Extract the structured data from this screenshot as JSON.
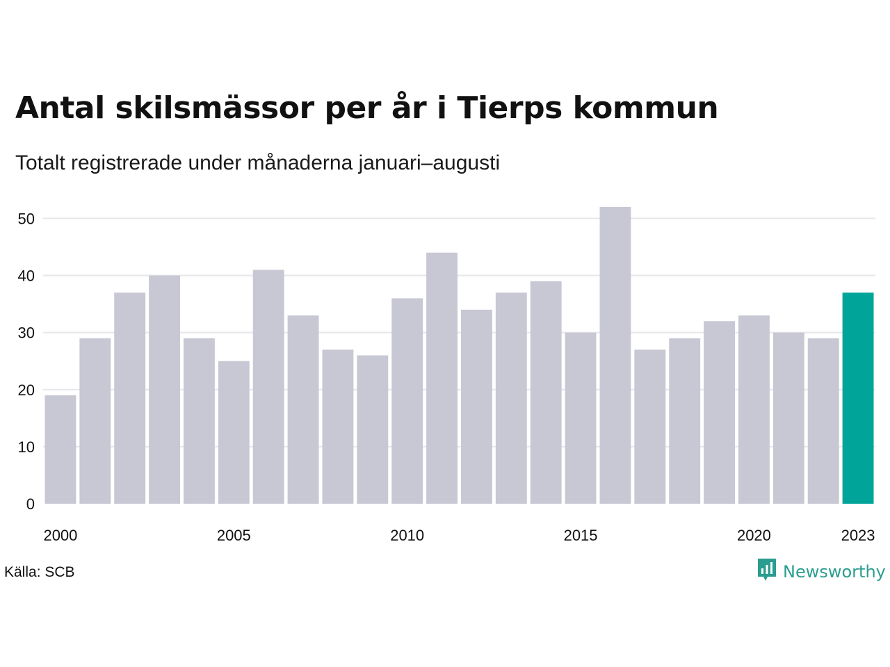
{
  "title": "Antal skilsmässor per år i Tierps kommun",
  "subtitle": "Totalt registrerade under månaderna januari–augusti",
  "source": "Källa: SCB",
  "brand": {
    "name": "Newsworthy",
    "logo_icon": "newsworthy-logo-icon",
    "color": "#2a9d8f"
  },
  "colors": {
    "bar": "#c8c7d4",
    "highlight": "#00a499",
    "grid": "#e6e6eb",
    "text": "#111111"
  },
  "chart_data": {
    "type": "bar",
    "categories": [
      "2000",
      "2001",
      "2002",
      "2003",
      "2004",
      "2005",
      "2006",
      "2007",
      "2008",
      "2009",
      "2010",
      "2011",
      "2012",
      "2013",
      "2014",
      "2015",
      "2016",
      "2017",
      "2018",
      "2019",
      "2020",
      "2021",
      "2022",
      "2023"
    ],
    "values": [
      19,
      29,
      37,
      40,
      29,
      25,
      41,
      33,
      27,
      26,
      36,
      44,
      34,
      37,
      39,
      30,
      52,
      27,
      29,
      32,
      33,
      30,
      29,
      37
    ],
    "x_tick_labels": [
      "2000",
      "2005",
      "2010",
      "2015",
      "2020",
      "2023"
    ],
    "y_ticks": [
      0,
      10,
      20,
      30,
      40,
      50
    ],
    "ylim": [
      0,
      52
    ],
    "highlight_category": "2023",
    "grid": true,
    "legend": "none",
    "xlabel": "",
    "ylabel": ""
  }
}
